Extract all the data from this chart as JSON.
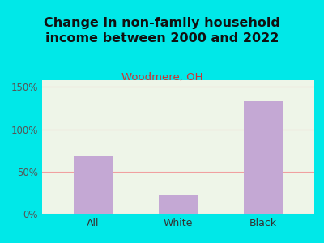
{
  "title": "Change in non-family household\nincome between 2000 and 2022",
  "subtitle": "Woodmere, OH",
  "categories": [
    "All",
    "White",
    "Black"
  ],
  "values": [
    68,
    22,
    133
  ],
  "bar_color": "#c4a8d4",
  "title_color": "#111111",
  "subtitle_color": "#cc3333",
  "yticks": [
    0,
    50,
    100,
    150
  ],
  "yticklabels": [
    "0%",
    "50%",
    "100%",
    "150%"
  ],
  "ylim": [
    0,
    158
  ],
  "background_outer": "#00e8e8",
  "background_plot": "#eef5e8",
  "grid_color": "#f0a0a0",
  "tick_color": "#555555",
  "xlabel_color": "#333333",
  "title_fontsize": 11.5,
  "subtitle_fontsize": 9.5
}
